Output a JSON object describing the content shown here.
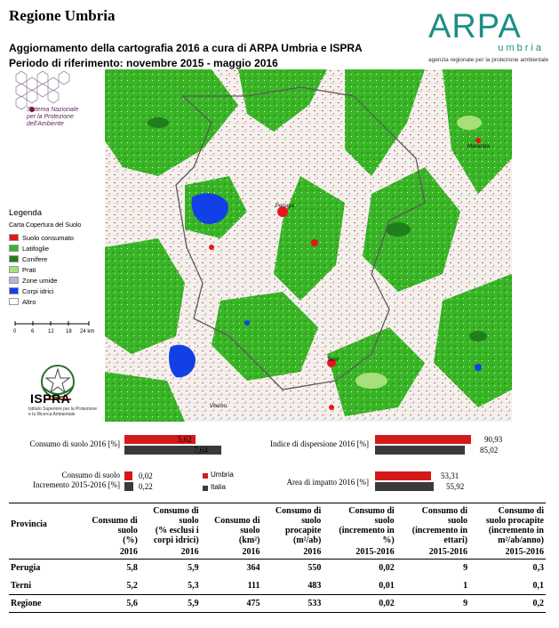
{
  "header": {
    "title": "Regione Umbria",
    "subtitle1": "Aggiornamento della cartografia 2016 a cura di ARPA Umbria e ISPRA",
    "subtitle2": "Periodo di riferimento: novembre 2015 - maggio 2016"
  },
  "arpa_logo": {
    "word": "ARPA",
    "region": "umbria",
    "tagline": "agenzia regionale per la protezione ambientale"
  },
  "snpa_logo": {
    "line1": "Sistema Nazionale",
    "line2": "per la Protezione",
    "line3": "dell'Ambiente"
  },
  "map": {
    "places": [
      "Perugia",
      "Macerata",
      "Terni",
      "Viterbo"
    ],
    "colors": {
      "suolo_consumato": "#e8141c",
      "latifoglie": "#39b526",
      "conifere": "#207f1d",
      "prati": "#a7e07a",
      "zone_umide": "#b9b1e4",
      "corpi_idrici": "#1240e6",
      "altro": "#ffffff"
    }
  },
  "legend": {
    "title": "Legenda",
    "subtitle": "Carta Copertura del Suolo",
    "items": [
      {
        "label": "Suolo consumato",
        "color": "#e8141c"
      },
      {
        "label": "Latifoglie",
        "color": "#39b526"
      },
      {
        "label": "Conifere",
        "color": "#207f1d"
      },
      {
        "label": "Prati",
        "color": "#a7e07a"
      },
      {
        "label": "Zone umide",
        "color": "#b9b1e4"
      },
      {
        "label": "Corpi idrici",
        "color": "#1240e6"
      },
      {
        "label": "Altro",
        "color": "#ffffff"
      }
    ],
    "scale_ticks": [
      "0",
      "6",
      "12",
      "18",
      "24 km"
    ]
  },
  "ispra_logo": {
    "word": "ISPRA",
    "tag1": "Istituto Superiore per la Protezione",
    "tag2": "e la Ricerca Ambientale"
  },
  "indicators": {
    "series_legend": {
      "umbria": "Umbria",
      "italia": "Italia",
      "umbria_color": "#d41919",
      "italia_color": "#3a3a3a"
    },
    "consumo_2016": {
      "label": "Consumo di suolo 2016 [%]",
      "umbria": "5,62",
      "italia": "7,64",
      "umbria_value": 5.62,
      "italia_value": 7.64
    },
    "incremento": {
      "label1": "Consumo di suolo",
      "label2": "Incremento 2015-2016 [%]",
      "umbria": "0,02",
      "italia": "0,22",
      "umbria_value": 0.02,
      "italia_value": 0.22
    },
    "dispersione": {
      "label": "Indice di dispersione 2016 [%]",
      "umbria": "90,93",
      "italia": "85,02",
      "umbria_value": 90.93,
      "italia_value": 85.02
    },
    "impatto": {
      "label": "Area di impatto 2016 [%]",
      "umbria": "53,31",
      "italia": "55,92",
      "umbria_value": 53.31,
      "italia_value": 55.92
    }
  },
  "table": {
    "provincia_header": "Provincia",
    "columns": [
      {
        "l1": "Consumo di",
        "l2": "suolo",
        "l3": "(%)",
        "l4": "",
        "year": "2016"
      },
      {
        "l1": "Consumo di",
        "l2": "suolo",
        "l3": "(% esclusi i",
        "l4": "corpi idrici)",
        "year": "2016"
      },
      {
        "l1": "Consumo di",
        "l2": "suolo",
        "l3": "(km²)",
        "l4": "",
        "year": "2016"
      },
      {
        "l1": "Consumo di",
        "l2": "suolo",
        "l3": "procapite",
        "l4": "(m²/ab)",
        "year": "2016"
      },
      {
        "l1": "Consumo di",
        "l2": "suolo",
        "l3": "(incremento in",
        "l4": "%)",
        "year": "2015-2016"
      },
      {
        "l1": "Consumo di",
        "l2": "suolo",
        "l3": "(incremento in",
        "l4": "ettari)",
        "year": "2015-2016"
      },
      {
        "l1": "Consumo di",
        "l2": "suolo procapite",
        "l3": "(incremento in",
        "l4": "m²/ab/anno)",
        "year": "2015-2016"
      }
    ],
    "rows": [
      {
        "name": "Perugia",
        "values": [
          "5,8",
          "5,9",
          "364",
          "550",
          "0,02",
          "9",
          "0,3"
        ]
      },
      {
        "name": "Terni",
        "values": [
          "5,2",
          "5,3",
          "111",
          "483",
          "0,01",
          "1",
          "0,1"
        ]
      },
      {
        "name": "Regione",
        "values": [
          "5,6",
          "5,9",
          "475",
          "533",
          "0,02",
          "9",
          "0,2"
        ]
      }
    ]
  }
}
